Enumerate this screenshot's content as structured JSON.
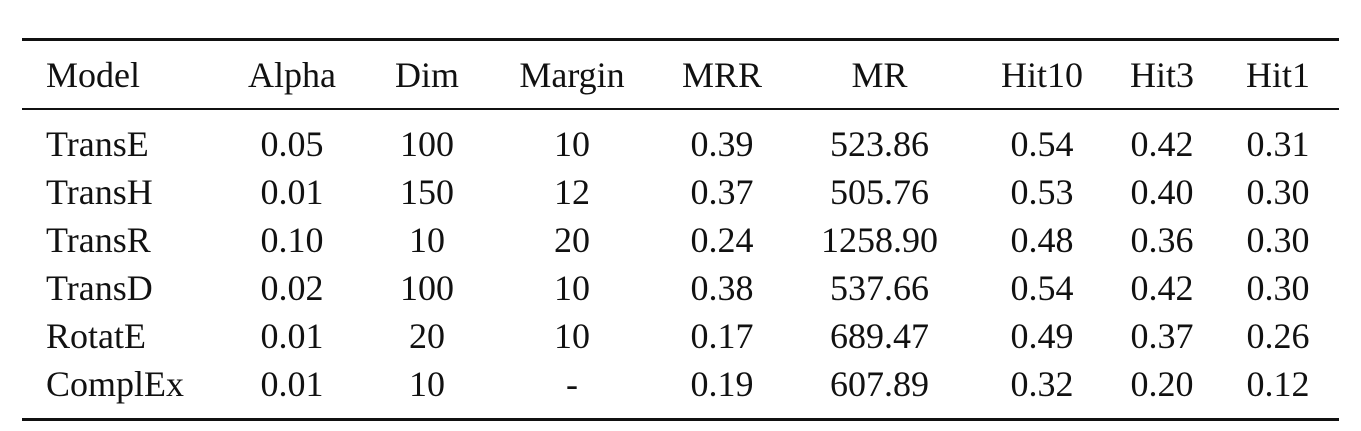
{
  "table": {
    "columns": [
      "Model",
      "Alpha",
      "Dim",
      "Margin",
      "MRR",
      "MR",
      "Hit10",
      "Hit3",
      "Hit1"
    ],
    "rows": [
      [
        "TransE",
        "0.05",
        "100",
        "10",
        "0.39",
        "523.86",
        "0.54",
        "0.42",
        "0.31"
      ],
      [
        "TransH",
        "0.01",
        "150",
        "12",
        "0.37",
        "505.76",
        "0.53",
        "0.40",
        "0.30"
      ],
      [
        "TransR",
        "0.10",
        "10",
        "20",
        "0.24",
        "1258.90",
        "0.48",
        "0.36",
        "0.30"
      ],
      [
        "TransD",
        "0.02",
        "100",
        "10",
        "0.38",
        "537.66",
        "0.54",
        "0.42",
        "0.30"
      ],
      [
        "RotatE",
        "0.01",
        "20",
        "10",
        "0.17",
        "689.47",
        "0.49",
        "0.37",
        "0.26"
      ],
      [
        "ComplEx",
        "0.01",
        "10",
        "-",
        "0.19",
        "607.89",
        "0.32",
        "0.20",
        "0.12"
      ]
    ]
  }
}
